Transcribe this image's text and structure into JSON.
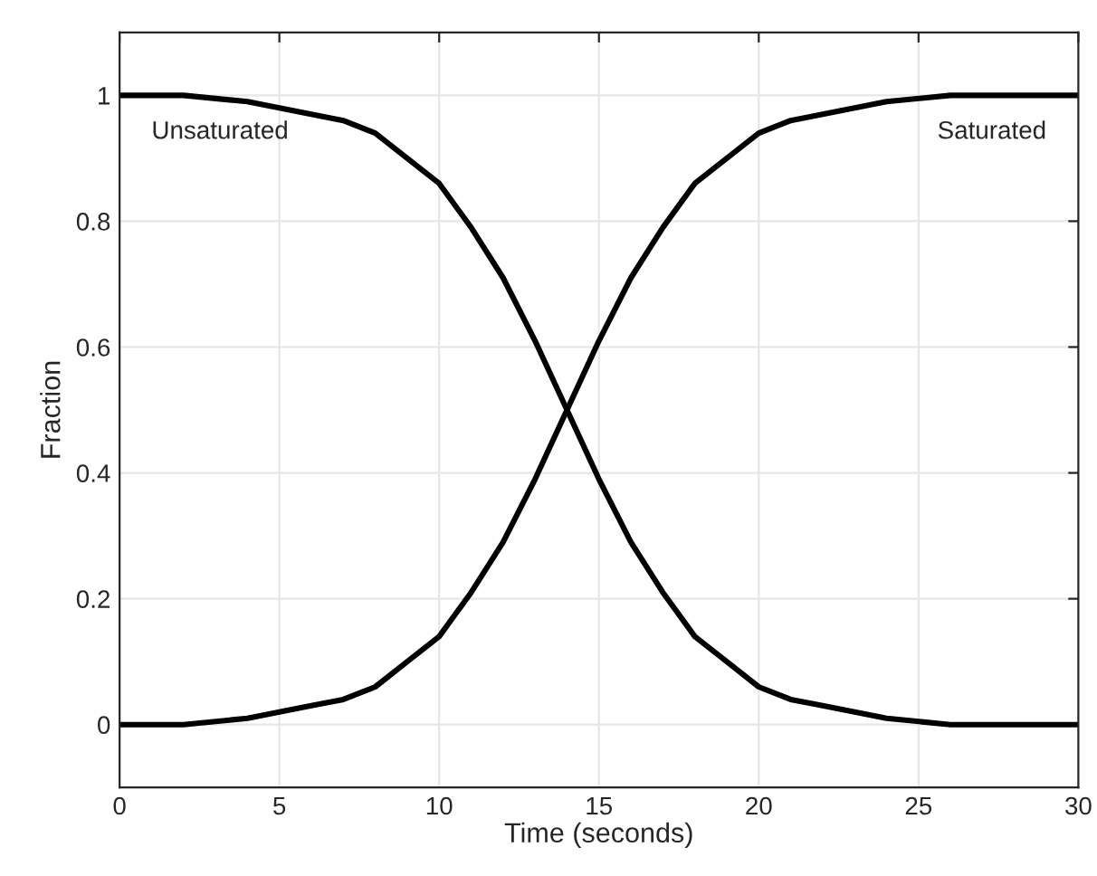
{
  "chart_data": {
    "type": "line",
    "xlabel": "Time (seconds)",
    "ylabel": "Fraction",
    "x": [
      0,
      2,
      4,
      6,
      7,
      8,
      9,
      10,
      11,
      12,
      13,
      14,
      15,
      16,
      17,
      18,
      19,
      20,
      21,
      22,
      24,
      26,
      28,
      30
    ],
    "series": [
      {
        "name": "Unsaturated",
        "color": "#000000",
        "values": [
          1,
          1,
          0.99,
          0.97,
          0.96,
          0.94,
          0.9,
          0.86,
          0.79,
          0.71,
          0.61,
          0.5,
          0.39,
          0.29,
          0.21,
          0.14,
          0.1,
          0.06,
          0.04,
          0.03,
          0.01,
          0,
          0,
          0
        ]
      },
      {
        "name": "Saturated",
        "color": "#000000",
        "values": [
          0,
          0,
          0.01,
          0.03,
          0.04,
          0.06,
          0.1,
          0.14,
          0.21,
          0.29,
          0.39,
          0.5,
          0.61,
          0.71,
          0.79,
          0.86,
          0.9,
          0.94,
          0.96,
          0.97,
          0.99,
          1,
          1,
          1
        ]
      }
    ],
    "xlim": [
      0,
      30
    ],
    "xticks": [
      0,
      5,
      10,
      15,
      20,
      25,
      30
    ],
    "ylim": [
      -0.1,
      1.1
    ],
    "yticks": [
      0,
      0.2,
      0.4,
      0.6,
      0.8,
      1
    ],
    "grid": true,
    "marker": "none",
    "line_style": "solid"
  }
}
